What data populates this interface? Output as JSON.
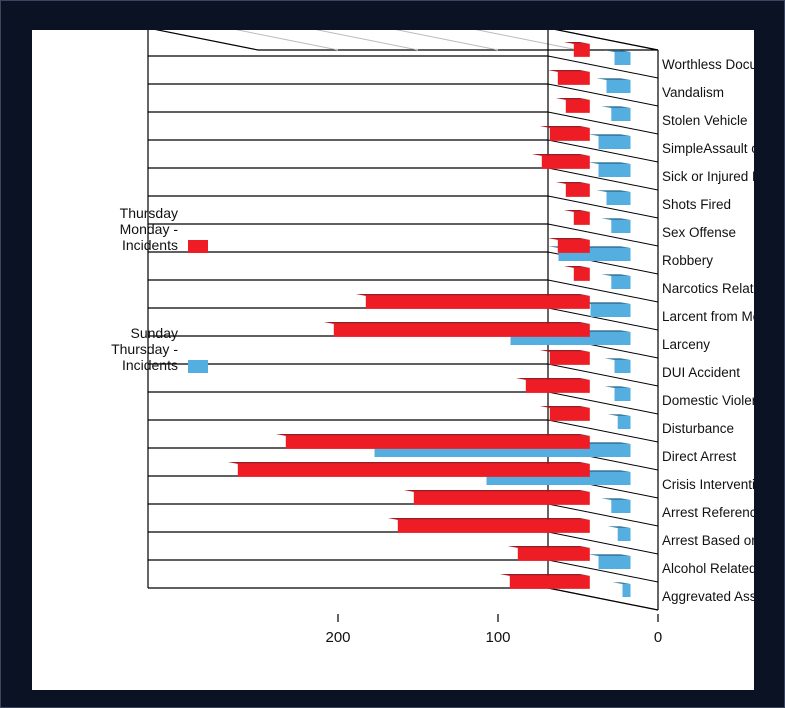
{
  "chart_data": {
    "type": "bar",
    "orientation": "rotated",
    "categories": [
      "Aggrevated Assaults",
      "Alcohol Related Incidents",
      "Arrest Based on warrant",
      "Arrest Reference Previous Case",
      "Crisis Intervention",
      "Direct Arrest",
      "Disturbance",
      "Domestic Violence",
      "DUI Accident",
      "Larceny",
      "Larcent from Motor Vehicle",
      "Narcotics Related Incident",
      "Robbery",
      "Sex Offense",
      "Shots Fired",
      "Sick or Injured Person",
      "SimpleAssault or Battery",
      "Stolen Vehicle",
      "Vandalism",
      "Worthless Document"
    ],
    "series": [
      {
        "name": "Incidents Monday - Thursday",
        "color": "#ee1c25",
        "values": [
          50,
          45,
          120,
          110,
          220,
          190,
          25,
          40,
          25,
          160,
          140,
          10,
          20,
          10,
          15,
          30,
          25,
          15,
          20,
          10
        ]
      },
      {
        "name": "Incidents Thursday - Sunday",
        "color": "#55aee0",
        "values": [
          5,
          20,
          8,
          12,
          90,
          160,
          8,
          10,
          10,
          75,
          25,
          12,
          45,
          12,
          15,
          20,
          20,
          12,
          15,
          10
        ]
      }
    ],
    "axis_ticks": [
      "0",
      "100",
      "200"
    ],
    "axis_range": [
      0,
      250
    ],
    "grid": true,
    "legend_position": "bottom-right"
  }
}
